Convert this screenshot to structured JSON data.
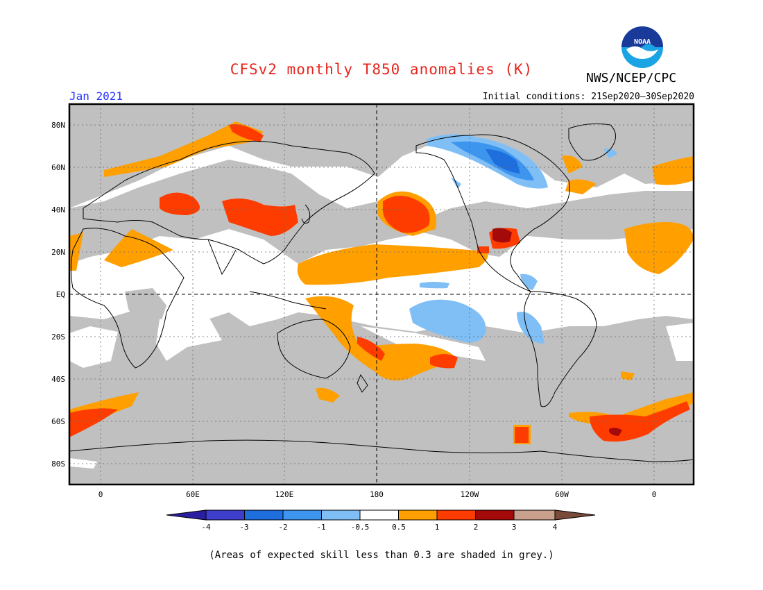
{
  "header": {
    "title": "CFSv2 monthly T850 anomalies (K)",
    "org": "NWS/NCEP/CPC",
    "period": "Jan 2021",
    "initial_conditions": "Initial conditions: 21Sep2020–30Sep2020",
    "logo_text": "NOAA"
  },
  "colors": {
    "title": "#e8241c",
    "period": "#2233ff",
    "skill_grey": "#c0c0c0",
    "ocean_bg": "#ffffff"
  },
  "map": {
    "lat_labels": [
      "80N",
      "60N",
      "40N",
      "20N",
      "EQ",
      "20S",
      "40S",
      "60S",
      "80S"
    ],
    "lon_labels": [
      "0",
      "60E",
      "120E",
      "180",
      "120W",
      "60W",
      "0"
    ]
  },
  "colorbar": {
    "bins": [
      {
        "range": "< -4",
        "color": "#2a1f9e"
      },
      {
        "range": "-4 to -3",
        "color": "#3e3ecc"
      },
      {
        "range": "-3 to -2",
        "color": "#1e6ede"
      },
      {
        "range": "-2 to -1",
        "color": "#3d95ee"
      },
      {
        "range": "-1 to -0.5",
        "color": "#80bff5"
      },
      {
        "range": "-0.5 to 0.5",
        "color": "#ffffff"
      },
      {
        "range": "0.5 to 1",
        "color": "#ff9f00"
      },
      {
        "range": "1 to 2",
        "color": "#ff3c00"
      },
      {
        "range": "2 to 3",
        "color": "#a50a0a"
      },
      {
        "range": "3 to 4",
        "color": "#c8a08c"
      },
      {
        "range": "> 4",
        "color": "#7a4a3a"
      }
    ],
    "tick_labels": [
      "-4",
      "-3",
      "-2",
      "-1",
      "-0.5",
      "0.5",
      "1",
      "2",
      "3",
      "4"
    ]
  },
  "footnote": "(Areas of expected skill less than 0.3 are shaded in grey.)"
}
